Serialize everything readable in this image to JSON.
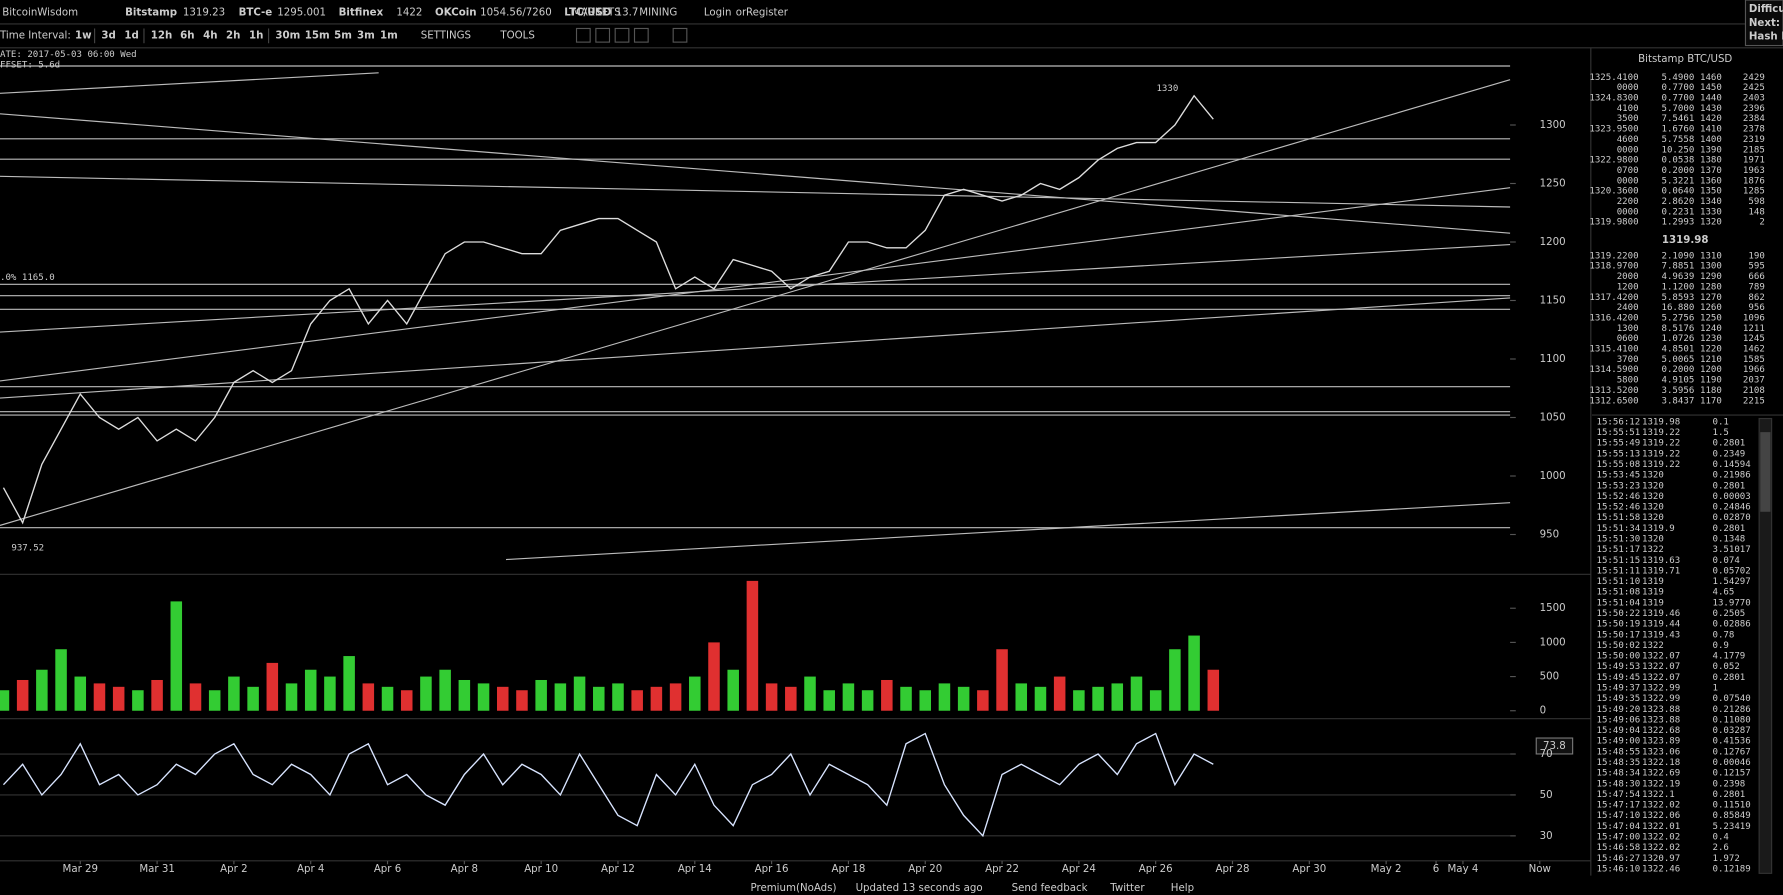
{
  "header": {
    "brand": "BitcoinWisdom",
    "tickers": [
      {
        "name": "Bitstamp",
        "price": "1319.23"
      },
      {
        "name": "BTC-e",
        "price": "1295.001"
      },
      {
        "name": "Bitfinex",
        "price": "1422"
      },
      {
        "name": "OKCoin",
        "price": "1054.56/7260"
      },
      {
        "name": "LTC/USD",
        "price": "13.7"
      }
    ],
    "menus": [
      "MARKETS",
      "MINING"
    ],
    "login": "Login",
    "or": "or",
    "register": "Register",
    "right": [
      "Difficu",
      "Next:",
      "Hash R"
    ]
  },
  "toolbar": {
    "label": "Time Interval:",
    "intervals": [
      "1w",
      "3d",
      "1d",
      "12h",
      "6h",
      "4h",
      "2h",
      "1h",
      "30m",
      "15m",
      "5m",
      "3m",
      "1m"
    ],
    "settings": "SETTINGS",
    "tools": "TOOLS"
  },
  "overlay": {
    "date": "ATE: 2017-05-03 06:00 Wed",
    "offset": "FFSET: 5.6d",
    "high": "1330",
    "low": "937.52",
    "fib": ".0% 1165.0",
    "rsi_now": "73.8"
  },
  "chart_data": [
    {
      "type": "line",
      "color": "#dddddd",
      "xlim": [
        -0.09,
        41.3
      ],
      "ylim": [
        916,
        1365
      ],
      "yticks": [
        950,
        1000,
        1050,
        1100,
        1150,
        1200,
        1250,
        1300
      ],
      "x": [
        0,
        0.5,
        1,
        1.5,
        2,
        2.5,
        3,
        3.5,
        4,
        4.5,
        5,
        5.5,
        6,
        6.5,
        7,
        7.5,
        8,
        8.5,
        9,
        9.5,
        10,
        10.5,
        11,
        11.5,
        12,
        12.5,
        13,
        13.5,
        14,
        14.5,
        15,
        15.5,
        16,
        16.5,
        17,
        17.5,
        18,
        18.5,
        19,
        19.5,
        20,
        20.5,
        21,
        21.5,
        22,
        22.5,
        23,
        23.5,
        24,
        24.5,
        25,
        25.5,
        26,
        26.5,
        27,
        27.5,
        28,
        28.5,
        29,
        29.5,
        30,
        30.5,
        31,
        31.5
      ],
      "values": [
        990,
        960,
        1010,
        1040,
        1070,
        1050,
        1040,
        1050,
        1030,
        1040,
        1030,
        1050,
        1080,
        1090,
        1080,
        1090,
        1130,
        1150,
        1160,
        1130,
        1150,
        1130,
        1160,
        1190,
        1200,
        1200,
        1195,
        1190,
        1190,
        1210,
        1215,
        1220,
        1220,
        1210,
        1200,
        1160,
        1170,
        1160,
        1185,
        1180,
        1175,
        1160,
        1170,
        1175,
        1200,
        1200,
        1195,
        1195,
        1210,
        1240,
        1245,
        1240,
        1235,
        1240,
        1250,
        1245,
        1255,
        1270,
        1280,
        1285,
        1285,
        1300,
        1325,
        1305
      ]
    },
    {
      "type": "bar",
      "colors": [
        "#33cc33",
        "#e03030"
      ],
      "xlim": [
        -0.09,
        41.3
      ],
      "ylim": [
        0,
        1930
      ],
      "yticks": [
        0,
        500,
        1000,
        1500
      ],
      "x": [
        0,
        0.5,
        1,
        1.5,
        2,
        2.5,
        3,
        3.5,
        4,
        4.5,
        5,
        5.5,
        6,
        6.5,
        7,
        7.5,
        8,
        8.5,
        9,
        9.5,
        10,
        10.5,
        11,
        11.5,
        12,
        12.5,
        13,
        13.5,
        14,
        14.5,
        15,
        15.5,
        16,
        16.5,
        17,
        17.5,
        18,
        18.5,
        19,
        19.5,
        20,
        20.5,
        21,
        21.5,
        22,
        22.5,
        23,
        23.5,
        24,
        24.5,
        25,
        25.5,
        26,
        26.5,
        27,
        27.5,
        28,
        28.5,
        29,
        29.5,
        30,
        30.5,
        31,
        31.5
      ],
      "values": [
        300,
        450,
        600,
        900,
        500,
        400,
        350,
        300,
        450,
        1600,
        400,
        300,
        500,
        350,
        700,
        400,
        600,
        500,
        800,
        400,
        350,
        300,
        500,
        600,
        450,
        400,
        350,
        300,
        450,
        400,
        500,
        350,
        400,
        300,
        350,
        400,
        500,
        1000,
        600,
        1900,
        400,
        350,
        500,
        300,
        400,
        300,
        450,
        350,
        300,
        400,
        350,
        300,
        900,
        400,
        350,
        500,
        300,
        350,
        400,
        500,
        300,
        900,
        1100,
        600
      ]
    },
    {
      "type": "line",
      "color": "#d8e4ff",
      "xlim": [
        -0.09,
        41.3
      ],
      "ylim": [
        18.9,
        86.7
      ],
      "yticks": [
        30,
        50,
        70
      ],
      "x": [
        0,
        0.5,
        1,
        1.5,
        2,
        2.5,
        3,
        3.5,
        4,
        4.5,
        5,
        5.5,
        6,
        6.5,
        7,
        7.5,
        8,
        8.5,
        9,
        9.5,
        10,
        10.5,
        11,
        11.5,
        12,
        12.5,
        13,
        13.5,
        14,
        14.5,
        15,
        15.5,
        16,
        16.5,
        17,
        17.5,
        18,
        18.5,
        19,
        19.5,
        20,
        20.5,
        21,
        21.5,
        22,
        22.5,
        23,
        23.5,
        24,
        24.5,
        25,
        25.5,
        26,
        26.5,
        27,
        27.5,
        28,
        28.5,
        29,
        29.5,
        30,
        30.5,
        31,
        31.5
      ],
      "values": [
        55,
        65,
        50,
        60,
        75,
        55,
        60,
        50,
        55,
        65,
        60,
        70,
        75,
        60,
        55,
        65,
        60,
        50,
        70,
        75,
        55,
        60,
        50,
        45,
        60,
        70,
        55,
        65,
        60,
        50,
        70,
        55,
        40,
        35,
        60,
        50,
        65,
        45,
        35,
        55,
        60,
        70,
        50,
        65,
        60,
        55,
        45,
        75,
        80,
        55,
        40,
        30,
        60,
        65,
        60,
        55,
        65,
        70,
        60,
        75,
        80,
        55,
        70,
        65
      ],
      "xticks": [
        {
          "value": 2,
          "label": "Mar 29"
        },
        {
          "value": 4,
          "label": "Mar 31"
        },
        {
          "value": 6,
          "label": "Apr 2"
        },
        {
          "value": 8,
          "label": "Apr 4"
        },
        {
          "value": 10,
          "label": "Apr 6"
        },
        {
          "value": 12,
          "label": "Apr 8"
        },
        {
          "value": 14,
          "label": "Apr 10"
        },
        {
          "value": 16,
          "label": "Apr 12"
        },
        {
          "value": 18,
          "label": "Apr 14"
        },
        {
          "value": 20,
          "label": "Apr 16"
        },
        {
          "value": 22,
          "label": "Apr 18"
        },
        {
          "value": 24,
          "label": "Apr 20"
        },
        {
          "value": 26,
          "label": "Apr 22"
        },
        {
          "value": 28,
          "label": "Apr 24"
        },
        {
          "value": 30,
          "label": "Apr 26"
        },
        {
          "value": 32,
          "label": "Apr 28"
        },
        {
          "value": 34,
          "label": "Apr 30"
        },
        {
          "value": 36,
          "label": "May 2"
        },
        {
          "value": 37.3,
          "label": "6"
        },
        {
          "value": 38,
          "label": "May 4"
        },
        {
          "value": 40,
          "label": "Now"
        }
      ]
    }
  ],
  "orderbook": {
    "title": "Bitstamp BTC/USD",
    "mid": "1319.98",
    "asks": [
      [
        "1325.4100",
        "5.4900",
        "1460",
        "2429"
      ],
      [
        "0000",
        "0.7700",
        "1450",
        "2425"
      ],
      [
        "1324.8300",
        "0.7700",
        "1440",
        "2403"
      ],
      [
        "4100",
        "5.7000",
        "1430",
        "2396"
      ],
      [
        "3500",
        "7.5461",
        "1420",
        "2384"
      ],
      [
        "1323.9500",
        "1.6760",
        "1410",
        "2378"
      ],
      [
        "4600",
        "5.7558",
        "1400",
        "2319"
      ],
      [
        "0000",
        "10.250",
        "1390",
        "2185"
      ],
      [
        "1322.9800",
        "0.0538",
        "1380",
        "1971"
      ],
      [
        "0700",
        "0.2000",
        "1370",
        "1963"
      ],
      [
        "0000",
        "5.3221",
        "1360",
        "1876"
      ],
      [
        "1320.3600",
        "0.0640",
        "1350",
        "1285"
      ],
      [
        "2200",
        "2.8620",
        "1340",
        "598"
      ],
      [
        "0000",
        "0.2231",
        "1330",
        "148"
      ],
      [
        "1319.9800",
        "1.2993",
        "1320",
        "2"
      ]
    ],
    "bids": [
      [
        "1319.2200",
        "2.1090",
        "1310",
        "190"
      ],
      [
        "1318.9700",
        "7.8851",
        "1300",
        "595"
      ],
      [
        "2000",
        "4.9639",
        "1290",
        "666"
      ],
      [
        "1200",
        "1.1200",
        "1280",
        "789"
      ],
      [
        "1317.4200",
        "5.8593",
        "1270",
        "862"
      ],
      [
        "2400",
        "16.880",
        "1260",
        "956"
      ],
      [
        "1316.4200",
        "5.2756",
        "1250",
        "1096"
      ],
      [
        "1300",
        "8.5176",
        "1240",
        "1211"
      ],
      [
        "0600",
        "1.0726",
        "1230",
        "1245"
      ],
      [
        "1315.4100",
        "4.8501",
        "1220",
        "1462"
      ],
      [
        "3700",
        "5.0065",
        "1210",
        "1585"
      ],
      [
        "1314.5900",
        "0.2000",
        "1200",
        "1966"
      ],
      [
        "5800",
        "4.9105",
        "1190",
        "2037"
      ],
      [
        "1313.5200",
        "3.5956",
        "1180",
        "2108"
      ],
      [
        "1312.6500",
        "3.8437",
        "1170",
        "2215"
      ]
    ]
  },
  "trades": [
    {
      "time": "15:56:12",
      "price": "1319.98",
      "amount": "0.1",
      "color": "#33cc33"
    },
    {
      "time": "15:55:51",
      "price": "1319.22",
      "amount": "1.5",
      "color": "#e03030"
    },
    {
      "time": "15:55:49",
      "price": "1319.22",
      "amount": "0.2801",
      "color": "#e03030"
    },
    {
      "time": "15:55:13",
      "price": "1319.22",
      "amount": "0.2349",
      "color": "#e03030"
    },
    {
      "time": "15:55:08",
      "price": "1319.22",
      "amount": "0.14594",
      "color": "#e03030"
    },
    {
      "time": "15:53:45",
      "price": "1320",
      "amount": "0.21986",
      "color": "#e03030"
    },
    {
      "time": "15:53:23",
      "price": "1320",
      "amount": "0.2801",
      "color": "#e03030"
    },
    {
      "time": "15:52:46",
      "price": "1320",
      "amount": "0.00003",
      "color": "#33cc33"
    },
    {
      "time": "15:52:46",
      "price": "1320",
      "amount": "0.24846",
      "color": "#e03030"
    },
    {
      "time": "15:51:58",
      "price": "1320",
      "amount": "0.02870",
      "color": "#e03030"
    },
    {
      "time": "15:51:34",
      "price": "1319.9",
      "amount": "0.2801",
      "color": "#e03030"
    },
    {
      "time": "15:51:30",
      "price": "1320",
      "amount": "0.1348",
      "color": "#e03030"
    },
    {
      "time": "15:51:17",
      "price": "1322",
      "amount": "3.51017",
      "color": "#33cc33"
    },
    {
      "time": "15:51:15",
      "price": "1319.63",
      "amount": "0.074",
      "color": "#33cc33"
    },
    {
      "time": "15:51:11",
      "price": "1319.71",
      "amount": "0.05702",
      "color": "#33cc33"
    },
    {
      "time": "15:51:10",
      "price": "1319",
      "amount": "1.54297",
      "color": "#e03030"
    },
    {
      "time": "15:51:08",
      "price": "1319",
      "amount": "4.65",
      "color": "#e03030"
    },
    {
      "time": "15:51:04",
      "price": "1319",
      "amount": "13.9770",
      "color": "#e03030"
    },
    {
      "time": "15:50:22",
      "price": "1319.46",
      "amount": "0.2505",
      "color": "#e03030"
    },
    {
      "time": "15:50:19",
      "price": "1319.44",
      "amount": "0.02886",
      "color": "#e03030"
    },
    {
      "time": "15:50:17",
      "price": "1319.43",
      "amount": "0.78",
      "color": "#e03030"
    },
    {
      "time": "15:50:02",
      "price": "1322",
      "amount": "0.9",
      "color": "#e03030"
    },
    {
      "time": "15:50:00",
      "price": "1322.07",
      "amount": "4.1779",
      "color": "#e03030"
    },
    {
      "time": "15:49:53",
      "price": "1322.07",
      "amount": "0.052",
      "color": "#e03030"
    },
    {
      "time": "15:49:45",
      "price": "1322.07",
      "amount": "0.2801",
      "color": "#e03030"
    },
    {
      "time": "15:49:37",
      "price": "1322.99",
      "amount": "1",
      "color": "#33cc33"
    },
    {
      "time": "15:49:35",
      "price": "1322.99",
      "amount": "0.07540",
      "color": "#33cc33"
    },
    {
      "time": "15:49:20",
      "price": "1323.88",
      "amount": "0.21286",
      "color": "#33cc33"
    },
    {
      "time": "15:49:06",
      "price": "1323.88",
      "amount": "0.11080",
      "color": "#33cc33"
    },
    {
      "time": "15:49:04",
      "price": "1322.68",
      "amount": "0.03287",
      "color": "#e03030"
    },
    {
      "time": "15:49:00",
      "price": "1323.89",
      "amount": "0.41536",
      "color": "#33cc33"
    },
    {
      "time": "15:48:55",
      "price": "1323.06",
      "amount": "0.12767",
      "color": "#33cc33"
    },
    {
      "time": "15:48:35",
      "price": "1322.18",
      "amount": "0.00046",
      "color": "#e03030"
    },
    {
      "time": "15:48:34",
      "price": "1322.69",
      "amount": "0.12157",
      "color": "#33cc33"
    },
    {
      "time": "15:48:30",
      "price": "1322.19",
      "amount": "0.2398",
      "color": "#e03030"
    },
    {
      "time": "15:47:54",
      "price": "1322.1",
      "amount": "0.2801",
      "color": "#e03030"
    },
    {
      "time": "15:47:17",
      "price": "1322.02",
      "amount": "0.11510",
      "color": "#e03030"
    },
    {
      "time": "15:47:10",
      "price": "1322.06",
      "amount": "0.85849",
      "color": "#e03030"
    },
    {
      "time": "15:47:04",
      "price": "1322.01",
      "amount": "5.23419",
      "color": "#e03030"
    },
    {
      "time": "15:47:00",
      "price": "1322.02",
      "amount": "0.4",
      "color": "#e03030"
    },
    {
      "time": "15:46:58",
      "price": "1322.02",
      "amount": "2.6",
      "color": "#e03030"
    },
    {
      "time": "15:46:27",
      "price": "1320.97",
      "amount": "1.972",
      "color": "#e03030"
    },
    {
      "time": "15:46:10",
      "price": "1322.46",
      "amount": "0.12189",
      "color": "#e03030"
    }
  ],
  "footer": {
    "links": [
      "Premium(NoAds)",
      "Updated 13 seconds ago",
      "Send feedback",
      "Twitter",
      "Help"
    ]
  }
}
